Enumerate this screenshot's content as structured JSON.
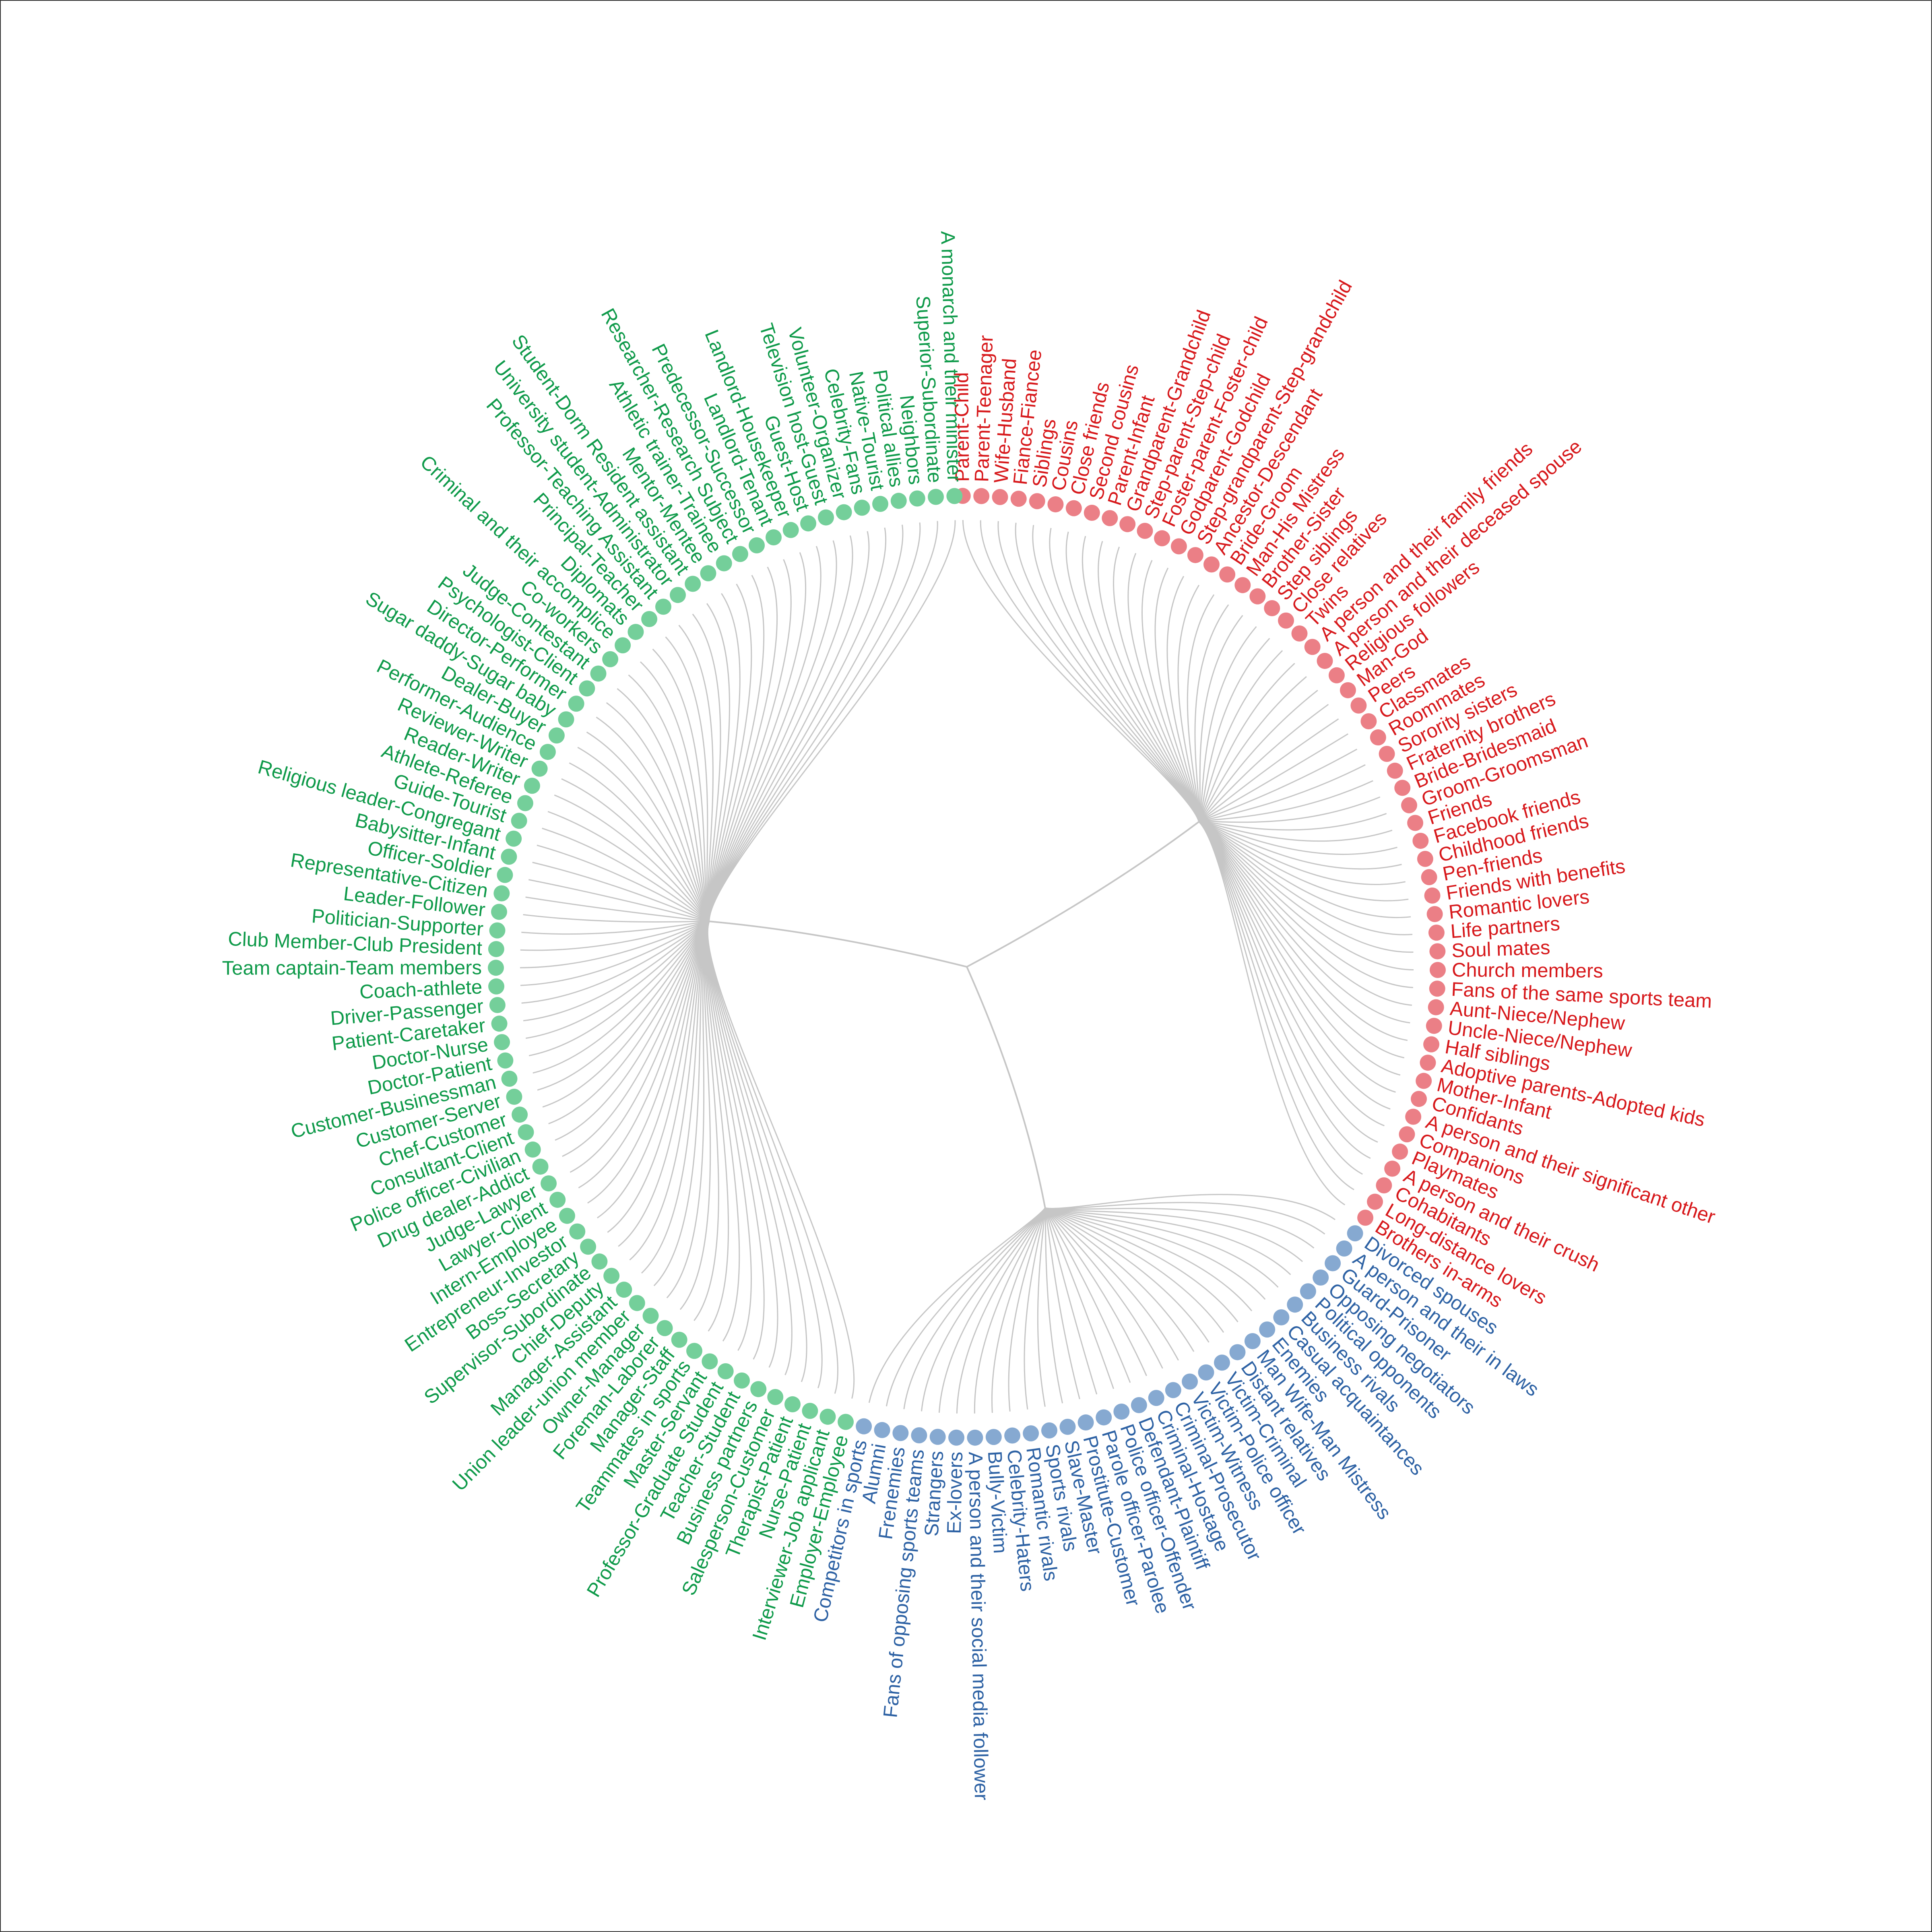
{
  "chart_data": {
    "type": "circular-dendrogram",
    "title": "",
    "colors": {
      "red": "#d7191c",
      "red_dot": "#eb7f86",
      "blue": "#2e62a4",
      "blue_dot": "#86a9d1",
      "green": "#0f9a4a",
      "green_dot": "#74cf9a",
      "branch": "#c6c6c6"
    },
    "clusters": [
      {
        "color": "red",
        "leaves": [
          "Parent-Child",
          "Parent-Teenager",
          "Wife-Husband",
          "Fiance-Fiancee",
          "Siblings",
          "Cousins",
          "Close friends",
          "Second cousins",
          "Parent-Infant",
          "Grandparent-Grandchild",
          "Step-parent-Step-child",
          "Foster-parent-Foster-child",
          "Godparent-Godchild",
          "Step-grandparent-Step-grandchild",
          "Ancestor-Descendant",
          "Bride-Groom",
          "Man-His Mistress",
          "Brother-Sister",
          "Step siblings",
          "Close relatives",
          "Twins",
          "A person and their family friends",
          "A person and their deceased spouse",
          "Religious followers",
          "Man-God",
          "Peers",
          "Classmates",
          "Roommates",
          "Sorority sisters",
          "Fraternity brothers",
          "Bride-Bridesmaid",
          "Groom-Groomsman",
          "Friends",
          "Facebook friends",
          "Childhood friends",
          "Pen-friends",
          "Friends with benefits",
          "Romantic lovers",
          "Life partners",
          "Soul mates",
          "Church members",
          "Fans of the same sports team",
          "Aunt-Niece/Nephew",
          "Uncle-Niece/Nephew",
          "Half siblings",
          "Adoptive parents-Adopted kids",
          "Mother-Infant",
          "Confidants",
          "A person and their significant other",
          "Companions",
          "Playmates",
          "A person and their crush",
          "Cohabitants",
          "Long-distance lovers",
          "Brothers in-arms"
        ]
      },
      {
        "color": "blue",
        "leaves": [
          "Divorced spouses",
          "A person and their in laws",
          "Guard-Prisoner",
          "Opposing negotiators",
          "Political opponents",
          "Business rivals",
          "Casual acquaintances",
          "Enemies",
          "Man Wife-Man Mistress",
          "Distant relatives",
          "Victim-Criminal",
          "Victim-Police officer",
          "Victim-Witness",
          "Criminal-Prosecutor",
          "Criminal-Hostage",
          "Defendant-Plaintiff",
          "Police officer-Offender",
          "Parole officer-Parolee",
          "Prostitute-Customer",
          "Slave-Master",
          "Sports rivals",
          "Romantic rivals",
          "Celebrity-Haters",
          "Bully-Victim",
          "A person and their social media follower",
          "Ex-lovers",
          "Strangers",
          "Fans of opposing sports teams",
          "Frenemies",
          "Alumni",
          "Competitors in sports"
        ]
      },
      {
        "color": "green",
        "leaves": [
          "Employer-Employee",
          "Interviewer-Job applicant",
          "Nurse-Patient",
          "Therapist-Patient",
          "Salesperson-Customer",
          "Business partners",
          "Teacher-Student",
          "Professor-Graduate Student",
          "Master-Servant",
          "Teammates in sports",
          "Manager-Staff",
          "Foreman-Laborer",
          "Owner-Manager",
          "Union leader-union member",
          "Manager-Assistant",
          "Chief-Deputy",
          "Supervisor-Subordinate",
          "Boss-Secretary",
          "Entrepreneur-Investor",
          "Intern-Employee",
          "Lawyer-Client",
          "Judge-Lawyer",
          "Drug dealer-Addict",
          "Police officer-Civilian",
          "Consultant-Client",
          "Chef-Customer",
          "Customer-Server",
          "Customer-Businessman",
          "Doctor-Patient",
          "Doctor-Nurse",
          "Patient-Caretaker",
          "Driver-Passenger",
          "Coach-athlete",
          "Team captain-Team members",
          "Club Member-Club President",
          "Politician-Supporter",
          "Leader-Follower",
          "Representative-Citizen",
          "Officer-Soldier",
          "Babysitter-Infant",
          "Religious leader-Congregant",
          "Guide-Tourist",
          "Athlete-Referee",
          "Reader-Writer",
          "Reviewer-Writer",
          "Performer-Audience",
          "Dealer-Buyer",
          "Sugar daddy-Sugar baby",
          "Director-Performer",
          "Psychologist-Client",
          "Judge-Contestant",
          "Co-workers",
          "Criminal and their accomplice",
          "Diplomats",
          "Principal-Teacher",
          "Professor-Teaching Assistant",
          "University student-Administrator",
          "Student-Dorm Resident assistant",
          "Mentor-Mentee",
          "Athletic trainer-Trainee",
          "Researcher-Research Subject",
          "Predecessor-Successor",
          "Landlord-Tenant",
          "Landlord-Housekeeper",
          "Guest-Host",
          "Television host-Guest",
          "Volunteer-Organizer",
          "Celebrity-Fans",
          "Native-Tourist",
          "Political allies",
          "Neighbors",
          "Superior-Subordinate",
          "A monarch and their minister"
        ]
      }
    ]
  }
}
